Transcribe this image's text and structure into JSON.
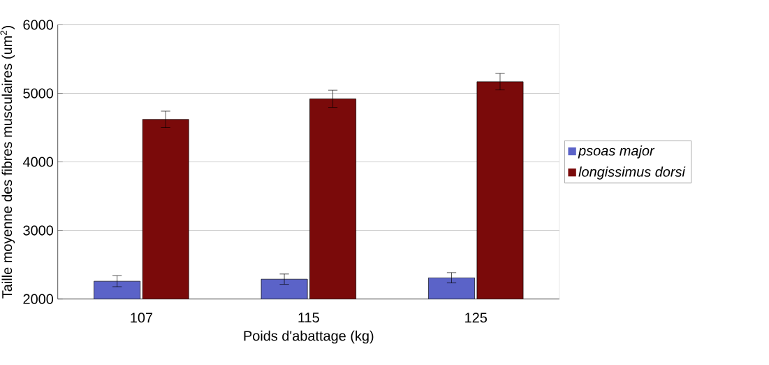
{
  "chart_data": {
    "type": "bar",
    "xlabel": "Poids d'abattage (kg)",
    "ylabel": "Taille moyenne des fibres musculaires (um$^{2}$)",
    "categories": [
      "107",
      "115",
      "125"
    ],
    "series": [
      {
        "name": "*psoas major*",
        "color": "#5b63c8",
        "values": [
          2260,
          2290,
          2310
        ],
        "errors": [
          80,
          75,
          75
        ]
      },
      {
        "name": "*longissimus dorsi*",
        "color": "#7a0a0a",
        "values": [
          4620,
          4920,
          5170
        ],
        "errors": [
          120,
          125,
          120
        ]
      }
    ],
    "ylim": [
      2000,
      6000
    ],
    "yticks": [
      2000,
      3000,
      4000,
      5000,
      6000
    ],
    "grid": "y",
    "legend": "right"
  }
}
